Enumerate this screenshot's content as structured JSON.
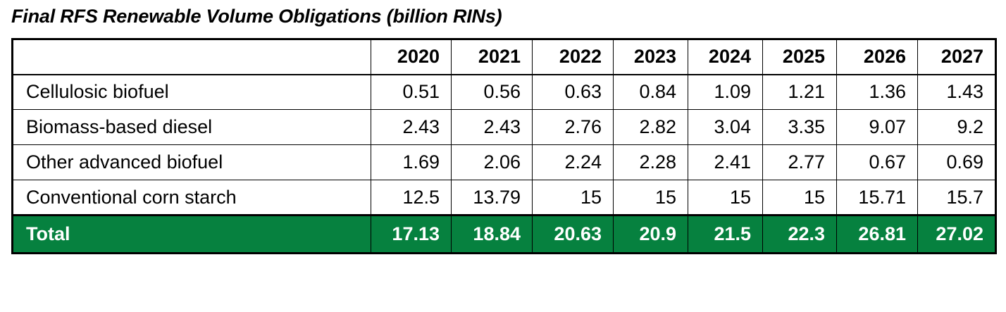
{
  "title": "Final RFS Renewable Volume Obligations (billion RINs)",
  "colors": {
    "total_row_bg": "#06813f",
    "total_row_text": "#ffffff"
  },
  "table": {
    "corner_header": "",
    "columns": [
      "2020",
      "2021",
      "2022",
      "2023",
      "2024",
      "2025",
      "2026",
      "2027"
    ],
    "rows": [
      {
        "label": "Cellulosic biofuel",
        "values": [
          "0.51",
          "0.56",
          "0.63",
          "0.84",
          "1.09",
          "1.21",
          "1.36",
          "1.43"
        ]
      },
      {
        "label": "Biomass-based diesel",
        "values": [
          "2.43",
          "2.43",
          "2.76",
          "2.82",
          "3.04",
          "3.35",
          "9.07",
          "9.2"
        ]
      },
      {
        "label": "Other advanced biofuel",
        "values": [
          "1.69",
          "2.06",
          "2.24",
          "2.28",
          "2.41",
          "2.77",
          "0.67",
          "0.69"
        ]
      },
      {
        "label": "Conventional corn starch",
        "values": [
          "12.5",
          "13.79",
          "15",
          "15",
          "15",
          "15",
          "15.71",
          "15.7"
        ]
      }
    ],
    "total": {
      "label": "Total",
      "values": [
        "17.13",
        "18.84",
        "20.63",
        "20.9",
        "21.5",
        "22.3",
        "26.81",
        "27.02"
      ]
    }
  }
}
